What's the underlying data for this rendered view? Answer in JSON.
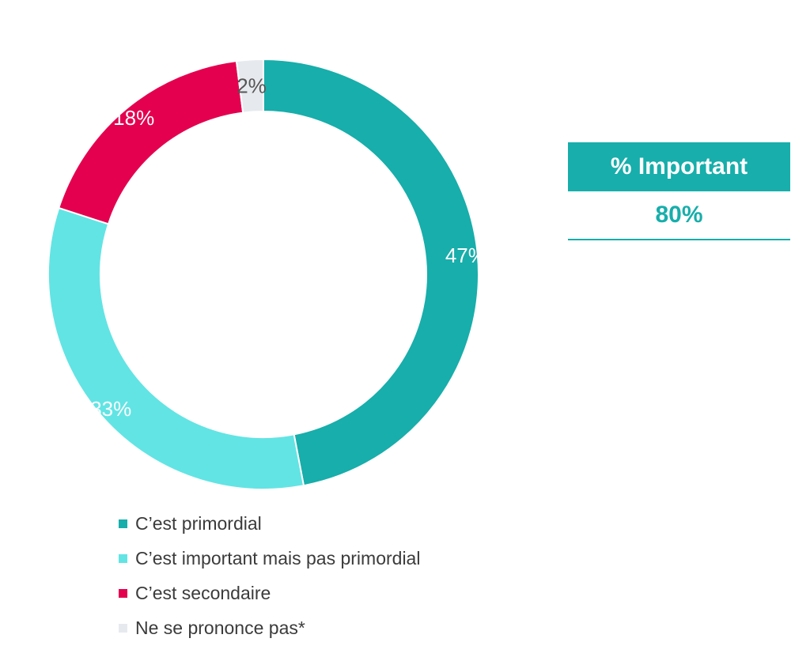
{
  "chart_data": {
    "type": "pie",
    "categories": [
      "C’est primordial",
      "C’est important mais pas primordial",
      "C’est secondaire",
      "Ne se prononce pas*"
    ],
    "values": [
      47,
      33,
      18,
      2
    ],
    "value_labels": [
      "47%",
      "33%",
      "18%",
      "2%"
    ],
    "colors": [
      "#17aeab",
      "#62e4e4",
      "#e4004f",
      "#e6e9ee"
    ],
    "label_colors": [
      "#ffffff",
      "#ffffff",
      "#ffffff",
      "#555555"
    ],
    "style": "donut",
    "legend_position": "bottom"
  },
  "kpi": {
    "title": "% Important",
    "value": "80%",
    "color": "#17aeab"
  }
}
